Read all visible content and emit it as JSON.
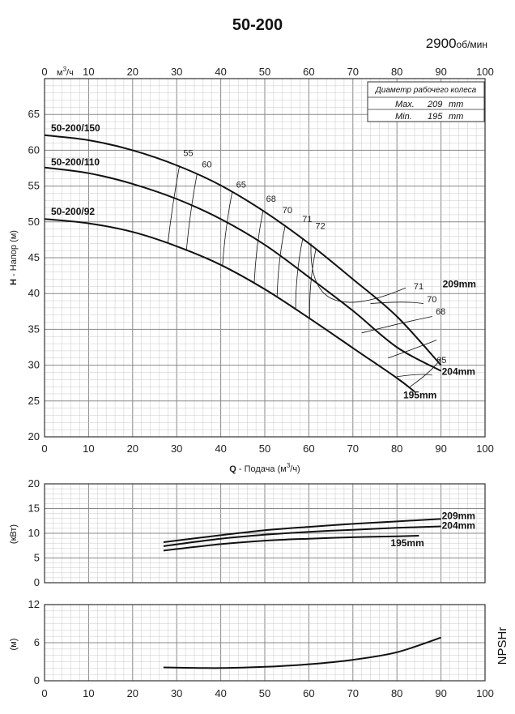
{
  "header": {
    "title": "50-200",
    "speed_value": "2900",
    "speed_unit": "об/мин"
  },
  "legend_box": {
    "title": "Диаметр рабочего колеса",
    "rows": [
      {
        "label": "Max.",
        "value": "209",
        "unit": "mm"
      },
      {
        "label": "Min.",
        "value": "195",
        "unit": "mm"
      }
    ]
  },
  "chart_data": [
    {
      "type": "line",
      "title": "",
      "xlabel": "Q - Подача (м³/ч)",
      "xlabel_parts": {
        "bold": "Q",
        "rest": " - Подача (м",
        "sup": "3",
        "tail": "/ч)"
      },
      "ylabel": "H - Напор (м)",
      "ylabel_parts": {
        "bold": "H",
        "rest": " - Напор (м)"
      },
      "top_axis_unit": {
        "pre": "м",
        "sup": "3",
        "tail": "/ч"
      },
      "xlim": [
        0,
        100
      ],
      "ylim": [
        20,
        70
      ],
      "x_ticks": [
        0,
        10,
        20,
        30,
        40,
        50,
        60,
        70,
        80,
        90,
        100
      ],
      "y_ticks": [
        20,
        25,
        30,
        35,
        40,
        45,
        50,
        55,
        60,
        65
      ],
      "grid": true,
      "series": [
        {
          "name": "209mm",
          "top_label": "50-200/150",
          "x": [
            0,
            10,
            20,
            30,
            40,
            50,
            60,
            70,
            80,
            90
          ],
          "y": [
            62.1,
            61.4,
            60.0,
            57.9,
            55.1,
            51.4,
            47.0,
            42.0,
            36.8,
            30.0
          ]
        },
        {
          "name": "204mm",
          "top_label": "50-200/110",
          "x": [
            0,
            10,
            20,
            30,
            40,
            50,
            60,
            70,
            80,
            90
          ],
          "y": [
            57.6,
            56.8,
            55.3,
            53.2,
            50.4,
            46.8,
            42.3,
            37.6,
            32.5,
            29.2
          ]
        },
        {
          "name": "195mm",
          "top_label": "50-200/92",
          "x": [
            0,
            10,
            20,
            30,
            40,
            50,
            60,
            70,
            80,
            84
          ],
          "y": [
            50.4,
            49.8,
            48.6,
            46.6,
            44.0,
            40.6,
            36.6,
            32.4,
            28.2,
            26.3
          ]
        }
      ],
      "efficiency_labels": [
        "55",
        "60",
        "65",
        "68",
        "70",
        "71",
        "72",
        "71",
        "70",
        "68",
        "65"
      ],
      "efficiency_label_points": [
        {
          "text": "55",
          "x": 31.5,
          "y": 59.2
        },
        {
          "text": "60",
          "x": 35.7,
          "y": 57.6
        },
        {
          "text": "65",
          "x": 43.5,
          "y": 54.8
        },
        {
          "text": "68",
          "x": 50.3,
          "y": 52.8
        },
        {
          "text": "70",
          "x": 54.0,
          "y": 51.2
        },
        {
          "text": "71",
          "x": 58.5,
          "y": 50.0
        },
        {
          "text": "72",
          "x": 61.5,
          "y": 49.0
        },
        {
          "text": "71",
          "x": 83.8,
          "y": 40.6
        },
        {
          "text": "70",
          "x": 86.8,
          "y": 38.8
        },
        {
          "text": "68",
          "x": 88.8,
          "y": 37.1
        },
        {
          "text": "65",
          "x": 89.0,
          "y": 30.3
        }
      ]
    },
    {
      "type": "line",
      "title": "",
      "xlabel": "",
      "ylabel": "(кВт)",
      "xlim": [
        0,
        100
      ],
      "ylim": [
        0,
        20
      ],
      "x_ticks": [],
      "y_ticks": [
        0,
        5,
        10,
        15,
        20
      ],
      "grid": true,
      "series": [
        {
          "name": "209mm",
          "x": [
            27,
            40,
            50,
            60,
            70,
            80,
            90
          ],
          "y": [
            8.2,
            9.6,
            10.6,
            11.3,
            11.9,
            12.4,
            12.9
          ]
        },
        {
          "name": "204mm",
          "x": [
            27,
            40,
            50,
            60,
            70,
            80,
            90
          ],
          "y": [
            7.4,
            8.9,
            9.7,
            10.3,
            10.7,
            11.1,
            11.4
          ]
        },
        {
          "name": "195mm",
          "x": [
            27,
            40,
            50,
            60,
            70,
            80,
            85
          ],
          "y": [
            6.5,
            7.8,
            8.5,
            8.9,
            9.2,
            9.4,
            9.5
          ]
        }
      ]
    },
    {
      "type": "line",
      "title": "",
      "xlabel": "",
      "ylabel": "(м)",
      "side_label": "NPSHr",
      "xlim": [
        0,
        100
      ],
      "ylim": [
        0,
        12
      ],
      "x_ticks": [
        0,
        10,
        20,
        30,
        40,
        50,
        60,
        70,
        80,
        90,
        100
      ],
      "y_ticks": [
        0,
        6,
        12
      ],
      "grid": true,
      "series": [
        {
          "name": "NPSHr",
          "x": [
            27,
            40,
            50,
            60,
            70,
            80,
            90
          ],
          "y": [
            2.1,
            2.0,
            2.2,
            2.6,
            3.3,
            4.5,
            6.8
          ]
        }
      ]
    }
  ],
  "colors": {
    "grid": "#c8c8c8",
    "grid_major": "#888888",
    "curve": "#111111"
  }
}
